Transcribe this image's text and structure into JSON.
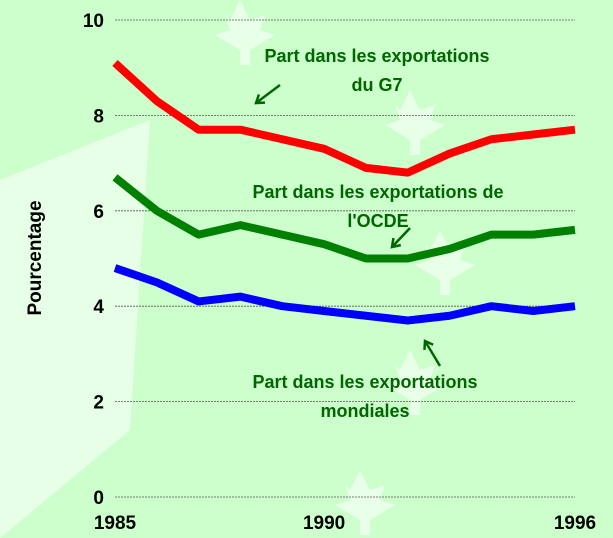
{
  "chart_data": {
    "type": "line",
    "y_label": "Pourcentage",
    "x": [
      1985,
      1986,
      1987,
      1988,
      1989,
      1990,
      1991,
      1992,
      1993,
      1994,
      1995,
      1996
    ],
    "xlim": [
      1985,
      1996
    ],
    "xticks": [
      1985,
      1990,
      1996
    ],
    "ylim": [
      0,
      10
    ],
    "yticks": [
      0,
      2,
      4,
      6,
      8,
      10
    ],
    "grid": true,
    "series": [
      {
        "color": "#ff0000",
        "values": [
          9.1,
          8.3,
          7.7,
          7.7,
          7.5,
          7.3,
          6.9,
          6.8,
          7.2,
          7.5,
          7.6,
          7.7
        ]
      },
      {
        "color": "#008000",
        "values": [
          6.7,
          6.0,
          5.5,
          5.7,
          5.5,
          5.3,
          5.0,
          5.0,
          5.2,
          5.5,
          5.5,
          5.6
        ]
      },
      {
        "color": "#0000ff",
        "values": [
          4.8,
          4.5,
          4.1,
          4.2,
          4.0,
          3.9,
          3.8,
          3.7,
          3.8,
          4.0,
          3.9,
          4.0
        ]
      }
    ],
    "annotations": [
      {
        "lines": [
          "Part dans les exportations",
          "du G7"
        ]
      },
      {
        "lines": [
          "Part dans les exportations de",
          "l'OCDE"
        ]
      },
      {
        "lines": [
          "Part dans les exportations",
          "mondiales"
        ]
      }
    ]
  }
}
